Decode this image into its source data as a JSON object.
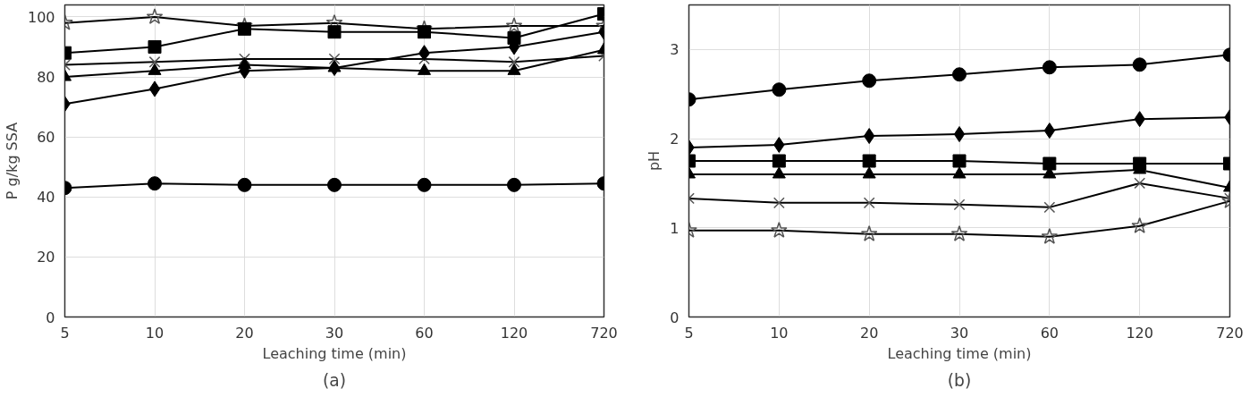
{
  "chart_data": [
    {
      "type": "line",
      "title": "(a)",
      "xlabel": "Leaching time (min)",
      "ylabel": "P g/kg SSA",
      "categories": [
        "5",
        "10",
        "20",
        "30",
        "60",
        "120",
        "720"
      ],
      "ylim": [
        0,
        104
      ],
      "yticks": [
        0,
        20,
        40,
        60,
        80,
        100
      ],
      "grid": true,
      "line_style": "solid",
      "series": [
        {
          "color": "#000000",
          "marker": "star",
          "values": [
            98,
            100,
            97,
            98,
            96,
            97,
            97
          ]
        },
        {
          "color": "#000000",
          "marker": "square",
          "values": [
            88,
            90,
            96,
            95,
            95,
            93,
            101
          ]
        },
        {
          "color": "#000000",
          "marker": "cross",
          "values": [
            84,
            85,
            86,
            86,
            86,
            85,
            87
          ]
        },
        {
          "color": "#000000",
          "marker": "triangle",
          "values": [
            80,
            82,
            84,
            83,
            82,
            82,
            89
          ]
        },
        {
          "color": "#000000",
          "marker": "diamond",
          "values": [
            71,
            76,
            82,
            83,
            88,
            90,
            95
          ]
        },
        {
          "color": "#000000",
          "marker": "circle",
          "values": [
            43,
            44.5,
            44,
            44,
            44,
            44,
            44.5
          ]
        }
      ]
    },
    {
      "type": "line",
      "title": "(b)",
      "xlabel": "Leaching time (min)",
      "ylabel": "pH",
      "categories": [
        "5",
        "10",
        "20",
        "30",
        "60",
        "120",
        "720"
      ],
      "ylim": [
        0,
        3.5
      ],
      "yticks": [
        0,
        1,
        2,
        3
      ],
      "grid": true,
      "line_style": "solid",
      "series": [
        {
          "color": "#000000",
          "marker": "circle",
          "values": [
            2.44,
            2.55,
            2.65,
            2.72,
            2.8,
            2.83,
            2.94
          ]
        },
        {
          "color": "#000000",
          "marker": "diamond",
          "values": [
            1.9,
            1.93,
            2.03,
            2.05,
            2.09,
            2.22,
            2.24
          ]
        },
        {
          "color": "#000000",
          "marker": "square",
          "values": [
            1.75,
            1.75,
            1.75,
            1.75,
            1.72,
            1.72,
            1.72
          ]
        },
        {
          "color": "#000000",
          "marker": "triangle",
          "values": [
            1.6,
            1.6,
            1.6,
            1.6,
            1.6,
            1.65,
            1.45
          ]
        },
        {
          "color": "#000000",
          "marker": "cross",
          "values": [
            1.33,
            1.28,
            1.28,
            1.26,
            1.23,
            1.5,
            1.33
          ]
        },
        {
          "color": "#000000",
          "marker": "star",
          "values": [
            0.97,
            0.97,
            0.93,
            0.93,
            0.9,
            1.02,
            1.3
          ]
        }
      ]
    }
  ]
}
